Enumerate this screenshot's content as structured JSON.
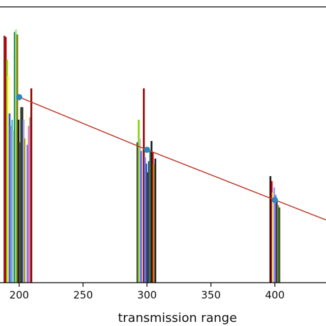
{
  "chart_data": {
    "type": "bar",
    "xlabel": "transmission range",
    "ylabel": "",
    "title": "",
    "xlim": [
      185,
      440
    ],
    "ylim": [
      0,
      22
    ],
    "x_ticks": [
      {
        "value": 200,
        "label": "200"
      },
      {
        "value": 250,
        "label": "250"
      },
      {
        "value": 300,
        "label": "300"
      },
      {
        "value": 350,
        "label": "350"
      },
      {
        "value": 400,
        "label": "400"
      }
    ],
    "bar_groups": [
      {
        "x": 200,
        "bars": [
          {
            "x": 188.5,
            "value": 19.7,
            "color": "#7a1f1f"
          },
          {
            "x": 189.5,
            "value": 19.6,
            "color": "#c00000"
          },
          {
            "x": 190.5,
            "value": 17.8,
            "color": "#7cd800"
          },
          {
            "x": 191.5,
            "value": 16.5,
            "color": "#ffff66"
          },
          {
            "x": 192.5,
            "value": 13.5,
            "color": "#4444ff"
          },
          {
            "x": 193.5,
            "value": 12.5,
            "color": "#8b84e6"
          },
          {
            "x": 194.5,
            "value": 13.0,
            "color": "#4cc6c6"
          },
          {
            "x": 195.5,
            "value": 12.2,
            "color": "#c8c8c8"
          },
          {
            "x": 196.5,
            "value": 20.0,
            "color": "#2e8b57"
          },
          {
            "x": 197.5,
            "value": 20.2,
            "color": "#90ee90"
          },
          {
            "x": 198.5,
            "value": 19.8,
            "color": "#8a7a00"
          },
          {
            "x": 199.5,
            "value": 13.0,
            "color": "#1a1a1a"
          },
          {
            "x": 200.5,
            "value": 11.2,
            "color": "#555555"
          },
          {
            "x": 201.5,
            "value": 14.0,
            "color": "#2f4f2f"
          },
          {
            "x": 202.5,
            "value": 14.0,
            "color": "#333333"
          },
          {
            "x": 203.5,
            "value": 13.0,
            "color": "#a0a0ff"
          },
          {
            "x": 204.5,
            "value": 11.5,
            "color": "#9a9a00"
          },
          {
            "x": 205.5,
            "value": 13.5,
            "color": "#ffffcc"
          },
          {
            "x": 206.5,
            "value": 11.0,
            "color": "#7070ff"
          },
          {
            "x": 207.5,
            "value": 12.5,
            "color": "#ff66cc"
          },
          {
            "x": 208.5,
            "value": 13.2,
            "color": "#b0a0a0"
          },
          {
            "x": 209.5,
            "value": 15.5,
            "color": "#8b0000"
          }
        ]
      },
      {
        "x": 300,
        "bars": [
          {
            "x": 292.5,
            "value": 11.2,
            "color": "#3a3a3a"
          },
          {
            "x": 293.5,
            "value": 13.0,
            "color": "#7cd800"
          },
          {
            "x": 294.5,
            "value": 11.5,
            "color": "#c0c0c0"
          },
          {
            "x": 295.5,
            "value": 10.5,
            "color": "#5050ff"
          },
          {
            "x": 296.5,
            "value": 10.6,
            "color": "#d0d0d0"
          },
          {
            "x": 297.5,
            "value": 15.5,
            "color": "#8b0000"
          },
          {
            "x": 298.5,
            "value": 10.0,
            "color": "#8080ff"
          },
          {
            "x": 299.5,
            "value": 9.5,
            "color": "#3366cc"
          },
          {
            "x": 300.5,
            "value": 8.8,
            "color": "#333333"
          },
          {
            "x": 301.5,
            "value": 9.7,
            "color": "#444466"
          },
          {
            "x": 302.5,
            "value": 10.5,
            "color": "#2e8b57"
          },
          {
            "x": 303.5,
            "value": 11.3,
            "color": "#1a1a1a"
          },
          {
            "x": 304.5,
            "value": 10.4,
            "color": "#c00000"
          },
          {
            "x": 305.5,
            "value": 9.5,
            "color": "#bbbb00"
          },
          {
            "x": 306.5,
            "value": 9.9,
            "color": "#202040"
          }
        ]
      },
      {
        "x": 400,
        "bars": [
          {
            "x": 396.5,
            "value": 8.5,
            "color": "#111111"
          },
          {
            "x": 397.5,
            "value": 8.1,
            "color": "#c00000"
          },
          {
            "x": 398.5,
            "value": 7.2,
            "color": "#ffff66"
          },
          {
            "x": 399.5,
            "value": 7.6,
            "color": "#a0a0ff"
          },
          {
            "x": 400.5,
            "value": 7.0,
            "color": "#6a6aff"
          },
          {
            "x": 401.5,
            "value": 6.5,
            "color": "#3a3a3a"
          },
          {
            "x": 402.5,
            "value": 6.2,
            "color": "#7c8a20"
          },
          {
            "x": 403.5,
            "value": 6.0,
            "color": "#2f4f2f"
          }
        ]
      }
    ],
    "series": [
      {
        "type": "line",
        "color": "#c0392b",
        "x": [
          200,
          300,
          400,
          440
        ],
        "y": [
          14.8,
          10.6,
          6.6,
          5.0
        ]
      },
      {
        "type": "scatter",
        "color": "#2e86c1",
        "x": [
          200,
          300,
          400
        ],
        "y": [
          14.8,
          10.6,
          6.6
        ]
      }
    ],
    "grid": false,
    "legend": "none"
  }
}
